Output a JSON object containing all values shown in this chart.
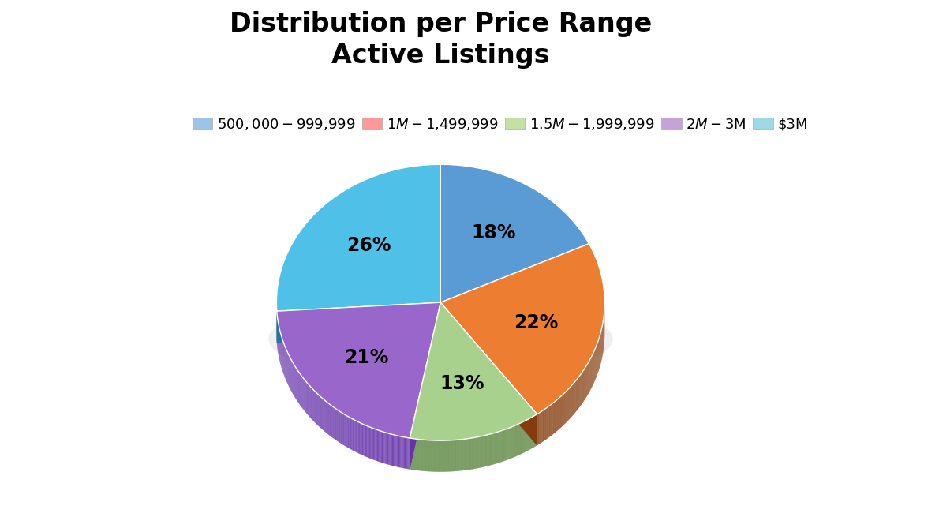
{
  "title": "Distribution per Price Range\nActive Listings",
  "slices": [
    18,
    22,
    13,
    21,
    26
  ],
  "labels": [
    "$500,000 - $999,999",
    "$1M - $1,499,999",
    "$1.5M - $1,999,999",
    "$2M - $3M",
    "$3M"
  ],
  "colors": [
    "#5B9BD5",
    "#ED7D31",
    "#A9D18E",
    "#9966CC",
    "#4FC1E9"
  ],
  "dark_colors": [
    "#2E5E8E",
    "#843C0C",
    "#507E32",
    "#6633AA",
    "#1A7A9A"
  ],
  "pct_labels": [
    "18%",
    "22%",
    "13%",
    "21%",
    "26%"
  ],
  "legend_colors": [
    "#9DC3E6",
    "#FF7C7C",
    "#C5E0A5",
    "#C5A3D8",
    "#9FD9E8"
  ],
  "title_fontsize": 24,
  "legend_fontsize": 13,
  "pct_fontsize": 17,
  "startangle": 90,
  "background_color": "#ffffff"
}
